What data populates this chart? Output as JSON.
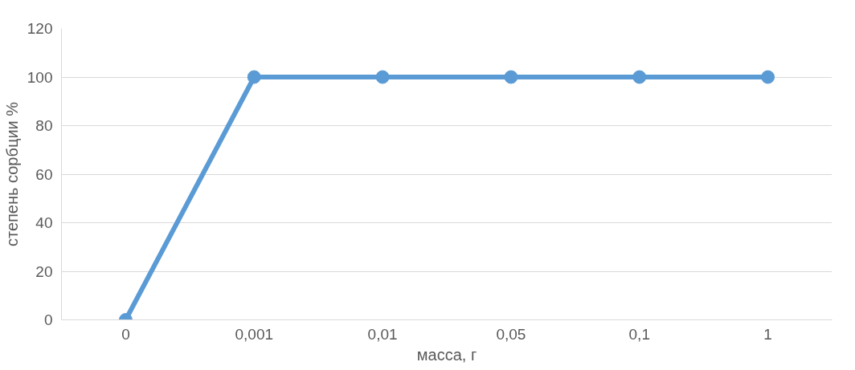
{
  "chart_data": {
    "type": "line",
    "xlabel": "масса, г",
    "ylabel": "степень сорбции %",
    "categories": [
      "0",
      "0,001",
      "0,01",
      "0,05",
      "0,1",
      "1"
    ],
    "series": [
      {
        "color": "#5b9bd5",
        "values": [
          0,
          100,
          100,
          100,
          100,
          100
        ]
      }
    ],
    "ylim": [
      0,
      120
    ],
    "yticks": [
      0,
      20,
      40,
      60,
      80,
      100,
      120
    ],
    "grid": "y",
    "marker": "circle",
    "line_style": "solid"
  }
}
